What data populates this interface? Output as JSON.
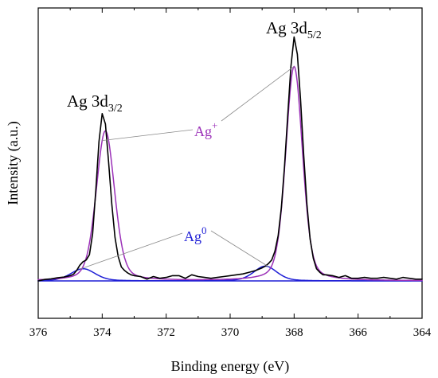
{
  "chart_data": {
    "type": "line",
    "xlabel": "Binding energy (eV)",
    "ylabel": "Intensity (a.u.)",
    "xlim": [
      376,
      364
    ],
    "x_reversed": true,
    "xticks": [
      376,
      374,
      372,
      370,
      368,
      366,
      364
    ],
    "y_tick_labels_shown": false,
    "grid": false,
    "legend": "none",
    "peak_labels": [
      {
        "base": "Ag 3d",
        "sub": "3/2",
        "x": 374.0
      },
      {
        "base": "Ag 3d",
        "sub": "5/2",
        "x": 368.0
      }
    ],
    "species_labels": [
      {
        "base": "Ag",
        "sup": "+",
        "color": "#9B30B8",
        "points_to_x": [
          374.0,
          368.0
        ]
      },
      {
        "base": "Ag",
        "sup": "0",
        "color": "#1F1FD6",
        "points_to_x": [
          374.7,
          368.8
        ]
      }
    ],
    "series": [
      {
        "color": "#000000",
        "role": "measured",
        "x": [
          376.0,
          375.8,
          375.6,
          375.4,
          375.2,
          375.0,
          374.9,
          374.8,
          374.7,
          374.6,
          374.5,
          374.4,
          374.3,
          374.2,
          374.1,
          374.0,
          373.9,
          373.8,
          373.7,
          373.6,
          373.5,
          373.4,
          373.3,
          373.2,
          373.1,
          373.0,
          372.8,
          372.6,
          372.4,
          372.2,
          372.0,
          371.8,
          371.6,
          371.4,
          371.2,
          371.0,
          370.8,
          370.6,
          370.4,
          370.2,
          370.0,
          369.8,
          369.6,
          369.4,
          369.2,
          369.0,
          368.9,
          368.8,
          368.7,
          368.6,
          368.5,
          368.4,
          368.3,
          368.2,
          368.1,
          368.0,
          367.9,
          367.8,
          367.7,
          367.6,
          367.5,
          367.4,
          367.3,
          367.2,
          367.1,
          367.0,
          366.8,
          366.6,
          366.4,
          366.2,
          366.0,
          365.8,
          365.6,
          365.4,
          365.2,
          365.0,
          364.8,
          364.6,
          364.4,
          364.2,
          364.0
        ],
        "y": [
          0.0,
          0.008,
          0.012,
          0.018,
          0.022,
          0.03,
          0.038,
          0.06,
          0.09,
          0.11,
          0.12,
          0.15,
          0.27,
          0.52,
          0.8,
          0.96,
          0.9,
          0.68,
          0.44,
          0.25,
          0.14,
          0.08,
          0.06,
          0.045,
          0.035,
          0.03,
          0.025,
          0.01,
          0.025,
          0.015,
          0.02,
          0.03,
          0.03,
          0.015,
          0.035,
          0.025,
          0.02,
          0.015,
          0.02,
          0.025,
          0.03,
          0.035,
          0.04,
          0.05,
          0.06,
          0.075,
          0.085,
          0.1,
          0.12,
          0.17,
          0.26,
          0.42,
          0.66,
          0.95,
          1.23,
          1.4,
          1.3,
          1.04,
          0.72,
          0.44,
          0.24,
          0.13,
          0.07,
          0.05,
          0.035,
          0.035,
          0.03,
          0.02,
          0.03,
          0.015,
          0.015,
          0.02,
          0.015,
          0.015,
          0.02,
          0.015,
          0.01,
          0.02,
          0.015,
          0.01,
          0.01
        ]
      },
      {
        "color": "#9B30B8",
        "role": "fit Ag+",
        "components": [
          {
            "center": 373.9,
            "height": 0.86,
            "fwhm": 0.68
          },
          {
            "center": 368.0,
            "height": 1.23,
            "fwhm": 0.62
          }
        ]
      },
      {
        "color": "#1F1FD6",
        "role": "fit Ag0",
        "components": [
          {
            "center": 374.6,
            "height": 0.07,
            "fwhm": 0.9
          },
          {
            "center": 368.9,
            "height": 0.085,
            "fwhm": 0.85
          }
        ]
      },
      {
        "color": "#1F1FD6",
        "role": "background",
        "x": [
          376.0,
          364.0
        ],
        "y": [
          0.0,
          0.0
        ]
      }
    ]
  }
}
